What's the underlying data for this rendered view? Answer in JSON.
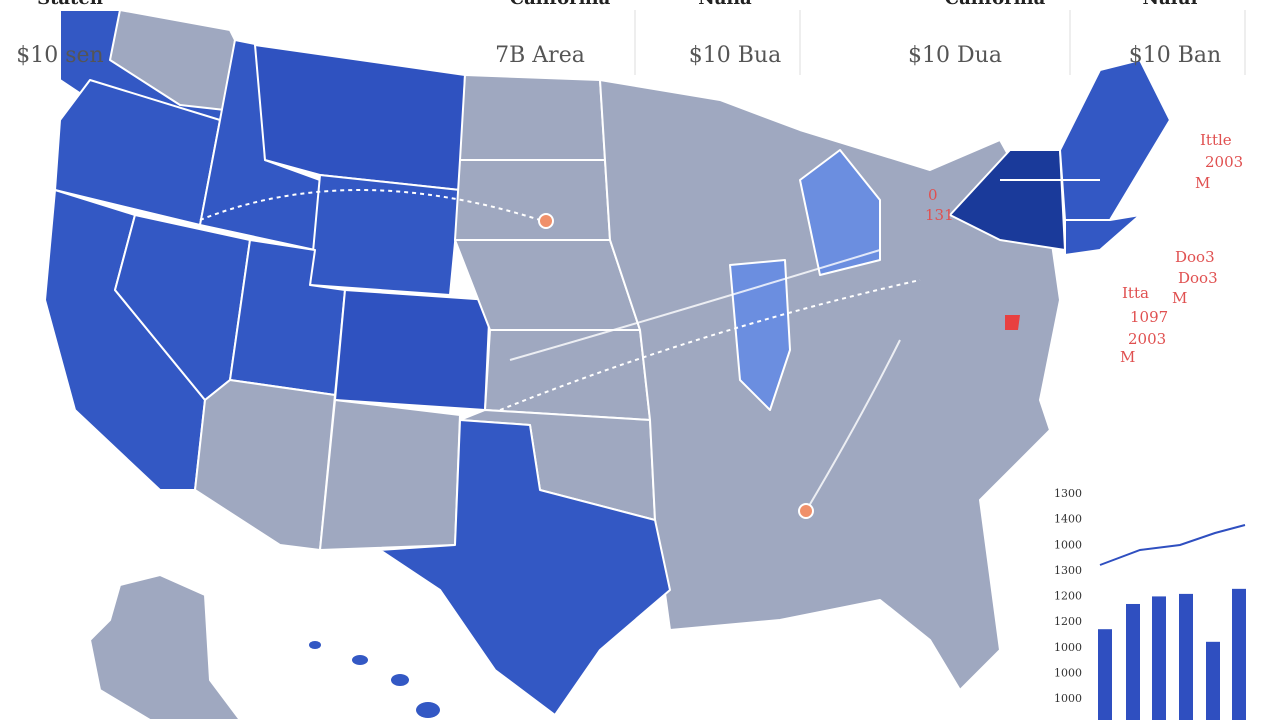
{
  "header_panels": [
    {
      "title": "Staten",
      "value": "$10 sen"
    },
    {
      "title": "California",
      "value": "7B Area"
    },
    {
      "title": "Nalia",
      "value": "$10 Bua"
    },
    {
      "title": "California",
      "value": "$10 Dua"
    },
    {
      "title": "Nalul",
      "value": "$10 Ban"
    }
  ],
  "annotations": [
    "Ittle",
    "2003",
    "M",
    "0",
    "131",
    "Doo3",
    "Doo3",
    "M",
    "Itta",
    "1097",
    "2003",
    "M"
  ],
  "mini_chart": {
    "type": "bar",
    "tick_labels": [
      "1300",
      "1400",
      "1000",
      "1300",
      "1200",
      "1200",
      "1000",
      "1000",
      "1000"
    ],
    "values": [
      3.6,
      4.6,
      4.9,
      5.0,
      3.1,
      5.2
    ],
    "ylim": [
      0,
      9
    ],
    "color": "#2f4fc0"
  }
}
